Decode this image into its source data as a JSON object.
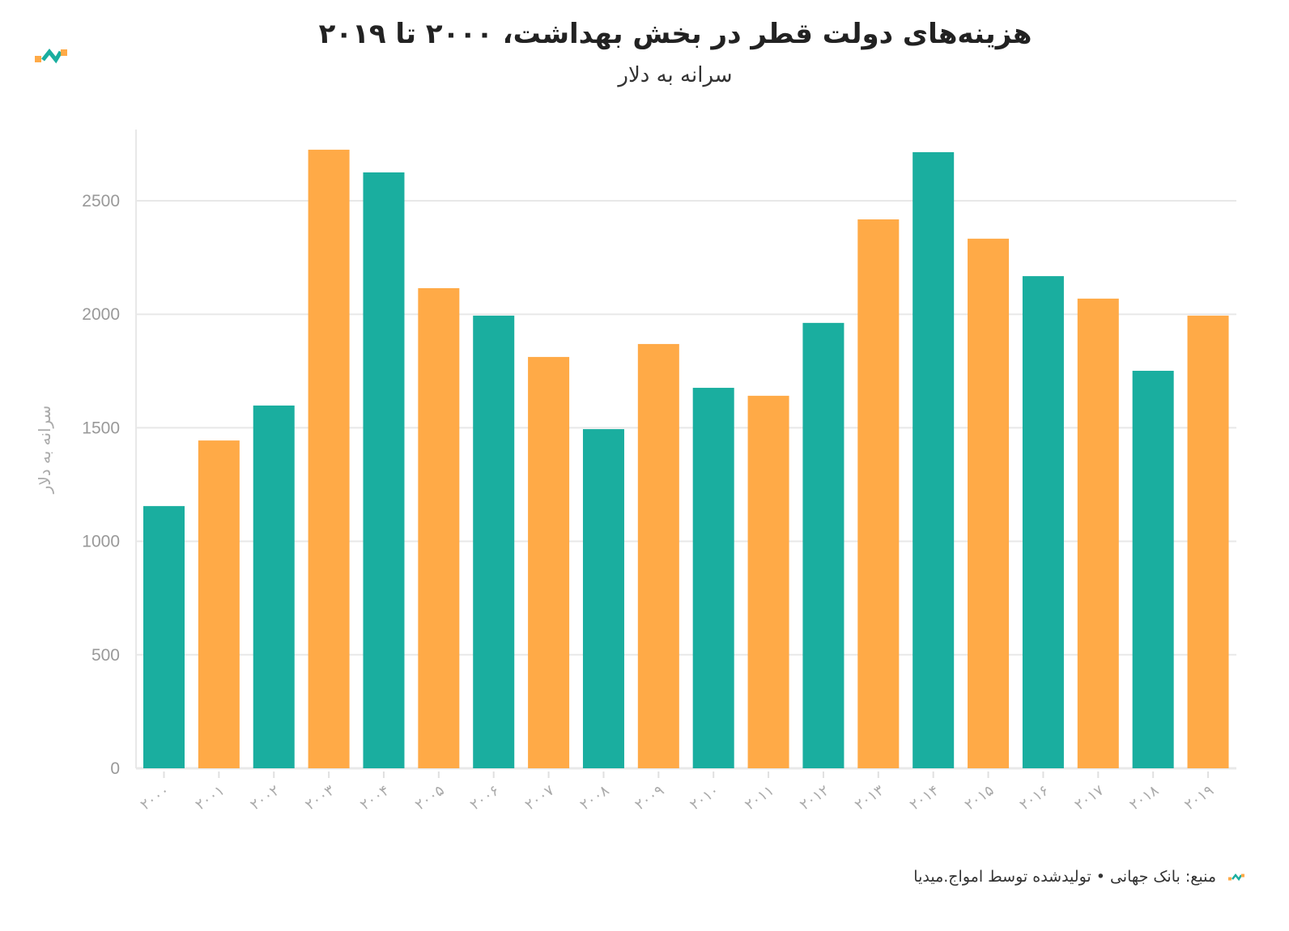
{
  "title": "هزینه‌های دولت قطر در بخش بهداشت، ۲۰۰۰ تا ۲۰۱۹",
  "subtitle": "سرانه به دلار",
  "footer": "منبع: بانک جهانی • تولیدشده توسط امواج.میدیا",
  "colors": {
    "teal": "#1aae9f",
    "orange": "#ffaa47"
  },
  "chart_data": {
    "type": "bar",
    "ylabel": "سرانه به دلار",
    "ylim": [
      0,
      2800
    ],
    "yticks": [
      0,
      500,
      1000,
      1500,
      2000,
      2500
    ],
    "grid": true,
    "categories": [
      "۲۰۰۰",
      "۲۰۰۱",
      "۲۰۰۲",
      "۲۰۰۳",
      "۲۰۰۴",
      "۲۰۰۵",
      "۲۰۰۶",
      "۲۰۰۷",
      "۲۰۰۸",
      "۲۰۰۹",
      "۲۰۱۰",
      "۲۰۱۱",
      "۲۰۱۲",
      "۲۰۱۳",
      "۲۰۱۴",
      "۲۰۱۵",
      "۲۰۱۶",
      "۲۰۱۷",
      "۲۰۱۸",
      "۲۰۱۹"
    ],
    "values": [
      1155,
      1444,
      1598,
      2725,
      2625,
      2115,
      1994,
      1812,
      1494,
      1869,
      1676,
      1641,
      1962,
      2418,
      2714,
      2333,
      2168,
      2069,
      1751,
      1994
    ],
    "bar_colors": [
      "teal",
      "orange",
      "teal",
      "orange",
      "teal",
      "orange",
      "teal",
      "orange",
      "teal",
      "orange",
      "teal",
      "orange",
      "teal",
      "orange",
      "teal",
      "orange",
      "teal",
      "orange",
      "teal",
      "orange"
    ]
  }
}
